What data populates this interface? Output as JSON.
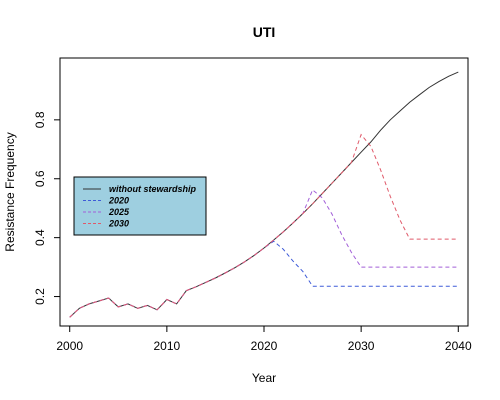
{
  "chart_data": {
    "type": "line",
    "title": "UTI",
    "xlabel": "Year",
    "ylabel": "Resistance Frequency",
    "xlim": [
      1999,
      2041
    ],
    "ylim": [
      0.1,
      1.01
    ],
    "xticks": [
      2000,
      2010,
      2020,
      2030,
      2040
    ],
    "yticks": [
      0.2,
      0.4,
      0.6,
      0.8
    ],
    "grid": false,
    "legend_position": "left",
    "legend_background": "#9ecfe0",
    "series": [
      {
        "name": "without stewardship",
        "color": "#333333",
        "dash": "solid",
        "x": [
          2000,
          2001,
          2002,
          2003,
          2004,
          2005,
          2006,
          2007,
          2008,
          2009,
          2010,
          2011,
          2012,
          2013,
          2014,
          2015,
          2016,
          2017,
          2018,
          2019,
          2020,
          2021,
          2022,
          2023,
          2024,
          2025,
          2026,
          2027,
          2028,
          2029,
          2030,
          2031,
          2032,
          2033,
          2034,
          2035,
          2036,
          2037,
          2038,
          2039,
          2040
        ],
        "y": [
          0.13,
          0.16,
          0.175,
          0.185,
          0.195,
          0.165,
          0.175,
          0.16,
          0.17,
          0.155,
          0.19,
          0.175,
          0.22,
          0.233,
          0.248,
          0.263,
          0.28,
          0.298,
          0.318,
          0.34,
          0.365,
          0.392,
          0.42,
          0.45,
          0.482,
          0.515,
          0.55,
          0.585,
          0.62,
          0.655,
          0.69,
          0.725,
          0.765,
          0.8,
          0.83,
          0.86,
          0.885,
          0.91,
          0.93,
          0.948,
          0.962
        ]
      },
      {
        "name": "2020",
        "color": "#3e5bd8",
        "dash": "dashed",
        "x": [
          2000,
          2001,
          2002,
          2003,
          2004,
          2005,
          2006,
          2007,
          2008,
          2009,
          2010,
          2011,
          2012,
          2013,
          2014,
          2015,
          2016,
          2017,
          2018,
          2019,
          2020,
          2021,
          2022,
          2023,
          2024,
          2025,
          2030,
          2035,
          2040
        ],
        "y": [
          0.13,
          0.16,
          0.175,
          0.185,
          0.195,
          0.165,
          0.175,
          0.16,
          0.17,
          0.155,
          0.19,
          0.175,
          0.22,
          0.233,
          0.248,
          0.263,
          0.28,
          0.298,
          0.318,
          0.34,
          0.365,
          0.388,
          0.36,
          0.32,
          0.285,
          0.235,
          0.235,
          0.235,
          0.235
        ]
      },
      {
        "name": "2025",
        "color": "#a25fd8",
        "dash": "dashed",
        "x": [
          2000,
          2001,
          2002,
          2003,
          2004,
          2005,
          2006,
          2007,
          2008,
          2009,
          2010,
          2011,
          2012,
          2013,
          2014,
          2015,
          2016,
          2017,
          2018,
          2019,
          2020,
          2021,
          2022,
          2023,
          2024,
          2025,
          2026,
          2027,
          2028,
          2029,
          2030,
          2035,
          2040
        ],
        "y": [
          0.13,
          0.16,
          0.175,
          0.185,
          0.195,
          0.165,
          0.175,
          0.16,
          0.17,
          0.155,
          0.19,
          0.175,
          0.22,
          0.233,
          0.248,
          0.263,
          0.28,
          0.298,
          0.318,
          0.34,
          0.365,
          0.392,
          0.42,
          0.45,
          0.482,
          0.562,
          0.535,
          0.48,
          0.41,
          0.35,
          0.3,
          0.3,
          0.3
        ]
      },
      {
        "name": "2030",
        "color": "#e05a6a",
        "dash": "dashed",
        "x": [
          2000,
          2001,
          2002,
          2003,
          2004,
          2005,
          2006,
          2007,
          2008,
          2009,
          2010,
          2011,
          2012,
          2013,
          2014,
          2015,
          2016,
          2017,
          2018,
          2019,
          2020,
          2021,
          2022,
          2023,
          2024,
          2025,
          2026,
          2027,
          2028,
          2029,
          2030,
          2031,
          2032,
          2033,
          2034,
          2035,
          2040
        ],
        "y": [
          0.13,
          0.16,
          0.175,
          0.185,
          0.195,
          0.165,
          0.175,
          0.16,
          0.17,
          0.155,
          0.19,
          0.175,
          0.22,
          0.233,
          0.248,
          0.263,
          0.28,
          0.298,
          0.318,
          0.34,
          0.365,
          0.392,
          0.42,
          0.45,
          0.482,
          0.515,
          0.55,
          0.585,
          0.62,
          0.655,
          0.75,
          0.71,
          0.63,
          0.54,
          0.46,
          0.395,
          0.395
        ]
      }
    ]
  }
}
